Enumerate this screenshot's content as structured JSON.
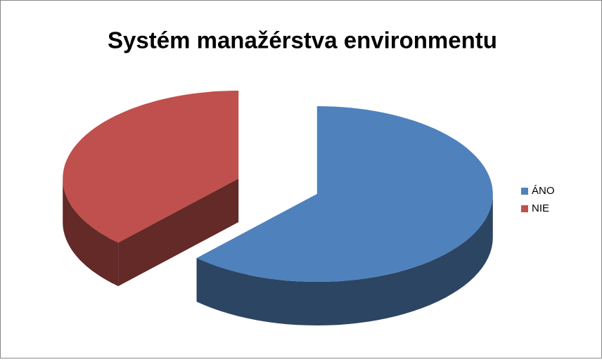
{
  "chart_data": {
    "type": "pie",
    "title": "Systém manažérstva environmentu",
    "categories": [
      "ÁNO",
      "NIE"
    ],
    "values": [
      62,
      38
    ],
    "colors": [
      "#4f81bd",
      "#c0504d"
    ],
    "side_colors": [
      "#2c4563",
      "#632a28"
    ],
    "legend": "right"
  }
}
